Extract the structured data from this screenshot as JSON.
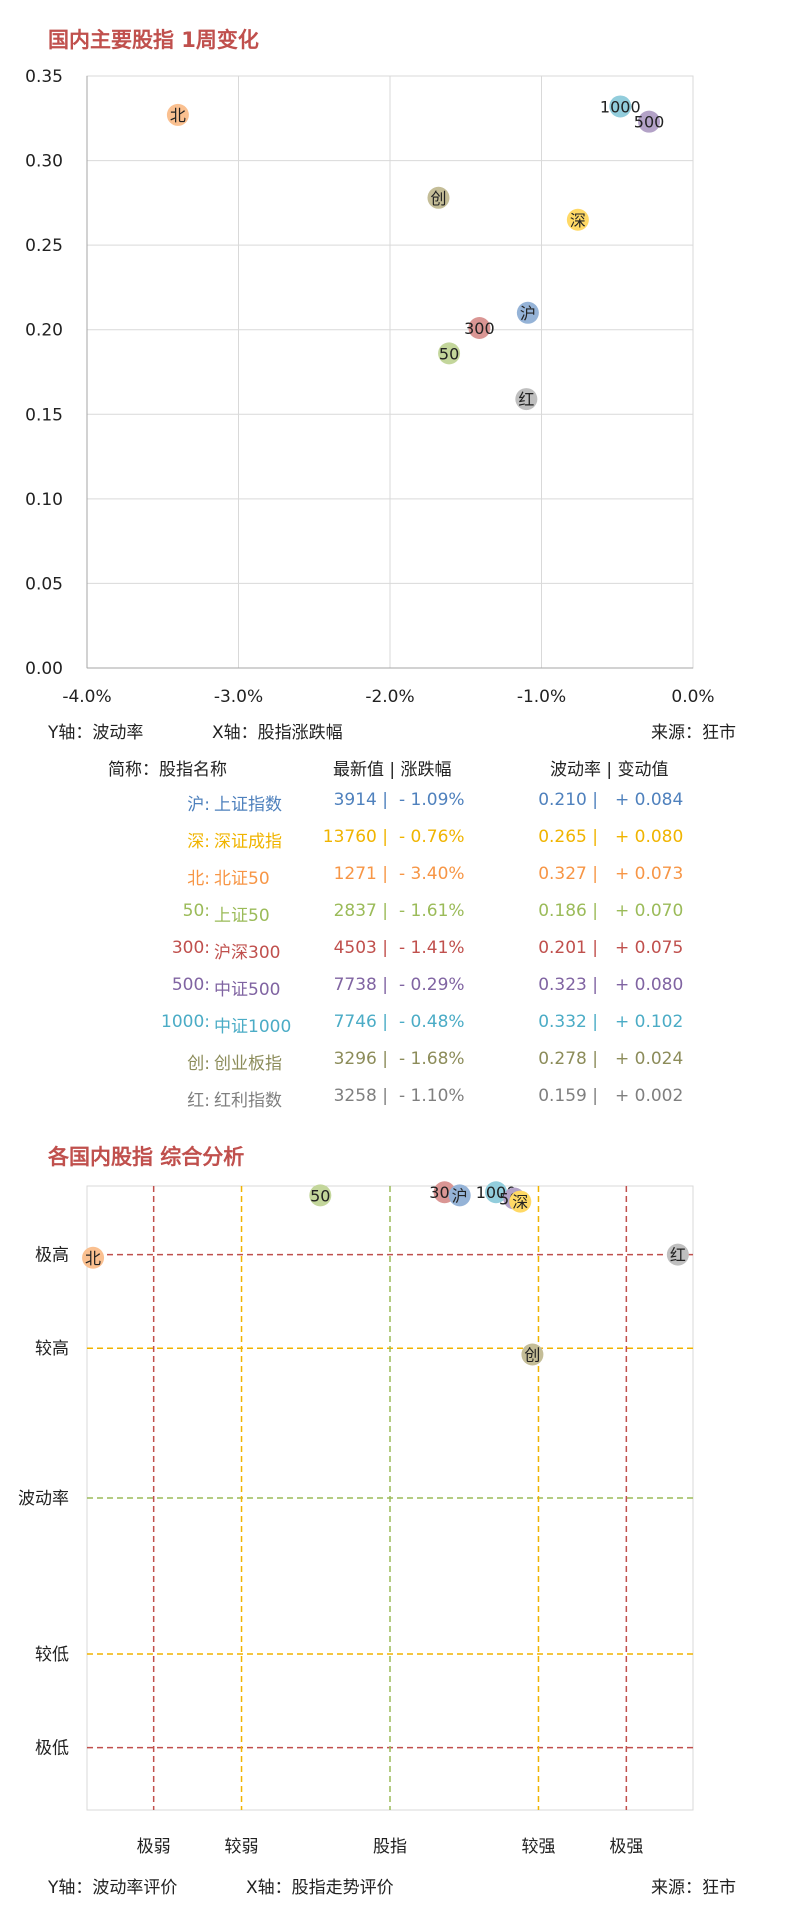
{
  "chart1": {
    "title": "国内主要股指 1周变化",
    "y_caption": "Y轴：波动率",
    "x_caption": "X轴：股指涨跌幅",
    "source": "来源：狂市",
    "table_headers": [
      "简称：股指名称",
      "最新值 | 涨跌幅",
      "波动率 | 变动值"
    ]
  },
  "chart2": {
    "title": "各国内股指 综合分析",
    "y_labels": [
      "极高",
      "较高",
      "波动率",
      "较低",
      "极低"
    ],
    "x_labels": [
      "极弱",
      "较弱",
      "股指",
      "较强",
      "极强"
    ],
    "y_caption": "Y轴：波动率评价",
    "x_caption": "X轴：股指走势评价",
    "source": "来源：狂市"
  },
  "chart_data": [
    {
      "type": "scatter",
      "title": "国内主要股指 1周变化",
      "xlabel": "",
      "ylabel": "",
      "xlim": [
        -0.04,
        0.0
      ],
      "ylim": [
        0.0,
        0.35
      ],
      "xticks": [
        "-4.0%",
        "-3.0%",
        "-2.0%",
        "-1.0%",
        "0.0%"
      ],
      "yticks": [
        "0.00",
        "0.05",
        "0.10",
        "0.15",
        "0.20",
        "0.25",
        "0.30",
        "0.35"
      ],
      "grid": true,
      "points": [
        {
          "label": "沪",
          "name": "上证指数",
          "x": -0.0109,
          "y": 0.21,
          "last": "3914",
          "chg": "- 1.09%",
          "vol": "0.210",
          "dvol": "+ 0.084",
          "color": "#4f81bd",
          "fill": "#95b3d7"
        },
        {
          "label": "深",
          "name": "深证成指",
          "x": -0.0076,
          "y": 0.265,
          "last": "13760",
          "chg": "- 0.76%",
          "vol": "0.265",
          "dvol": "+ 0.080",
          "color": "#f0b400",
          "fill": "#ffd966"
        },
        {
          "label": "北",
          "name": "北证50",
          "x": -0.034,
          "y": 0.327,
          "last": "1271",
          "chg": "- 3.40%",
          "vol": "0.327",
          "dvol": "+ 0.073",
          "color": "#f79646",
          "fill": "#fac090"
        },
        {
          "label": "50",
          "name": "上证50",
          "x": -0.0161,
          "y": 0.186,
          "last": "2837",
          "chg": "- 1.61%",
          "vol": "0.186",
          "dvol": "+ 0.070",
          "color": "#9bbb59",
          "fill": "#c3d69b"
        },
        {
          "label": "300",
          "name": "沪深300",
          "x": -0.0141,
          "y": 0.201,
          "last": "4503",
          "chg": "- 1.41%",
          "vol": "0.201",
          "dvol": "+ 0.075",
          "color": "#c0504d",
          "fill": "#da9694"
        },
        {
          "label": "500",
          "name": "中证500",
          "x": -0.0029,
          "y": 0.323,
          "last": "7738",
          "chg": "- 0.29%",
          "vol": "0.323",
          "dvol": "+ 0.080",
          "color": "#8064a2",
          "fill": "#b3a2c7"
        },
        {
          "label": "1000",
          "name": "中证1000",
          "x": -0.0048,
          "y": 0.332,
          "last": "7746",
          "chg": "- 0.48%",
          "vol": "0.332",
          "dvol": "+ 0.102",
          "color": "#4bacc6",
          "fill": "#92cddc"
        },
        {
          "label": "创",
          "name": "创业板指",
          "x": -0.0168,
          "y": 0.278,
          "last": "3296",
          "chg": "- 1.68%",
          "vol": "0.278",
          "dvol": "+ 0.024",
          "color": "#8c8c5a",
          "fill": "#c4bd97"
        },
        {
          "label": "红",
          "name": "红利指数",
          "x": -0.011,
          "y": 0.159,
          "last": "3258",
          "chg": "- 1.10%",
          "vol": "0.159",
          "dvol": "+ 0.002",
          "color": "#7f7f7f",
          "fill": "#bfbfbf"
        }
      ]
    },
    {
      "type": "scatter",
      "title": "各国内股指 综合分析",
      "xlabel": "",
      "ylabel": "",
      "xlim": [
        0,
        100
      ],
      "ylim": [
        0,
        100
      ],
      "y_levels": [
        {
          "label": "极高",
          "y": 89
        },
        {
          "label": "较高",
          "y": 74
        },
        {
          "label": "波动率",
          "y": 50
        },
        {
          "label": "较低",
          "y": 25
        },
        {
          "label": "极低",
          "y": 10
        }
      ],
      "x_levels": [
        {
          "label": "极弱",
          "x": 11
        },
        {
          "label": "较弱",
          "x": 25.5
        },
        {
          "label": "股指",
          "x": 50
        },
        {
          "label": "较强",
          "x": 74.5
        },
        {
          "label": "极强",
          "x": 89
        }
      ],
      "points": [
        {
          "label": "50",
          "x": 38.5,
          "y": 98.5
        },
        {
          "label": "300",
          "x": 59.0,
          "y": 99.0
        },
        {
          "label": "沪",
          "x": 61.5,
          "y": 98.5
        },
        {
          "label": "1000",
          "x": 67.5,
          "y": 99.0
        },
        {
          "label": "500",
          "x": 70.5,
          "y": 98.0
        },
        {
          "label": "深",
          "x": 71.5,
          "y": 97.5
        },
        {
          "label": "北",
          "x": 1.0,
          "y": 88.5
        },
        {
          "label": "红",
          "x": 97.5,
          "y": 89.0
        },
        {
          "label": "创",
          "x": 73.5,
          "y": 73.0
        }
      ]
    }
  ]
}
